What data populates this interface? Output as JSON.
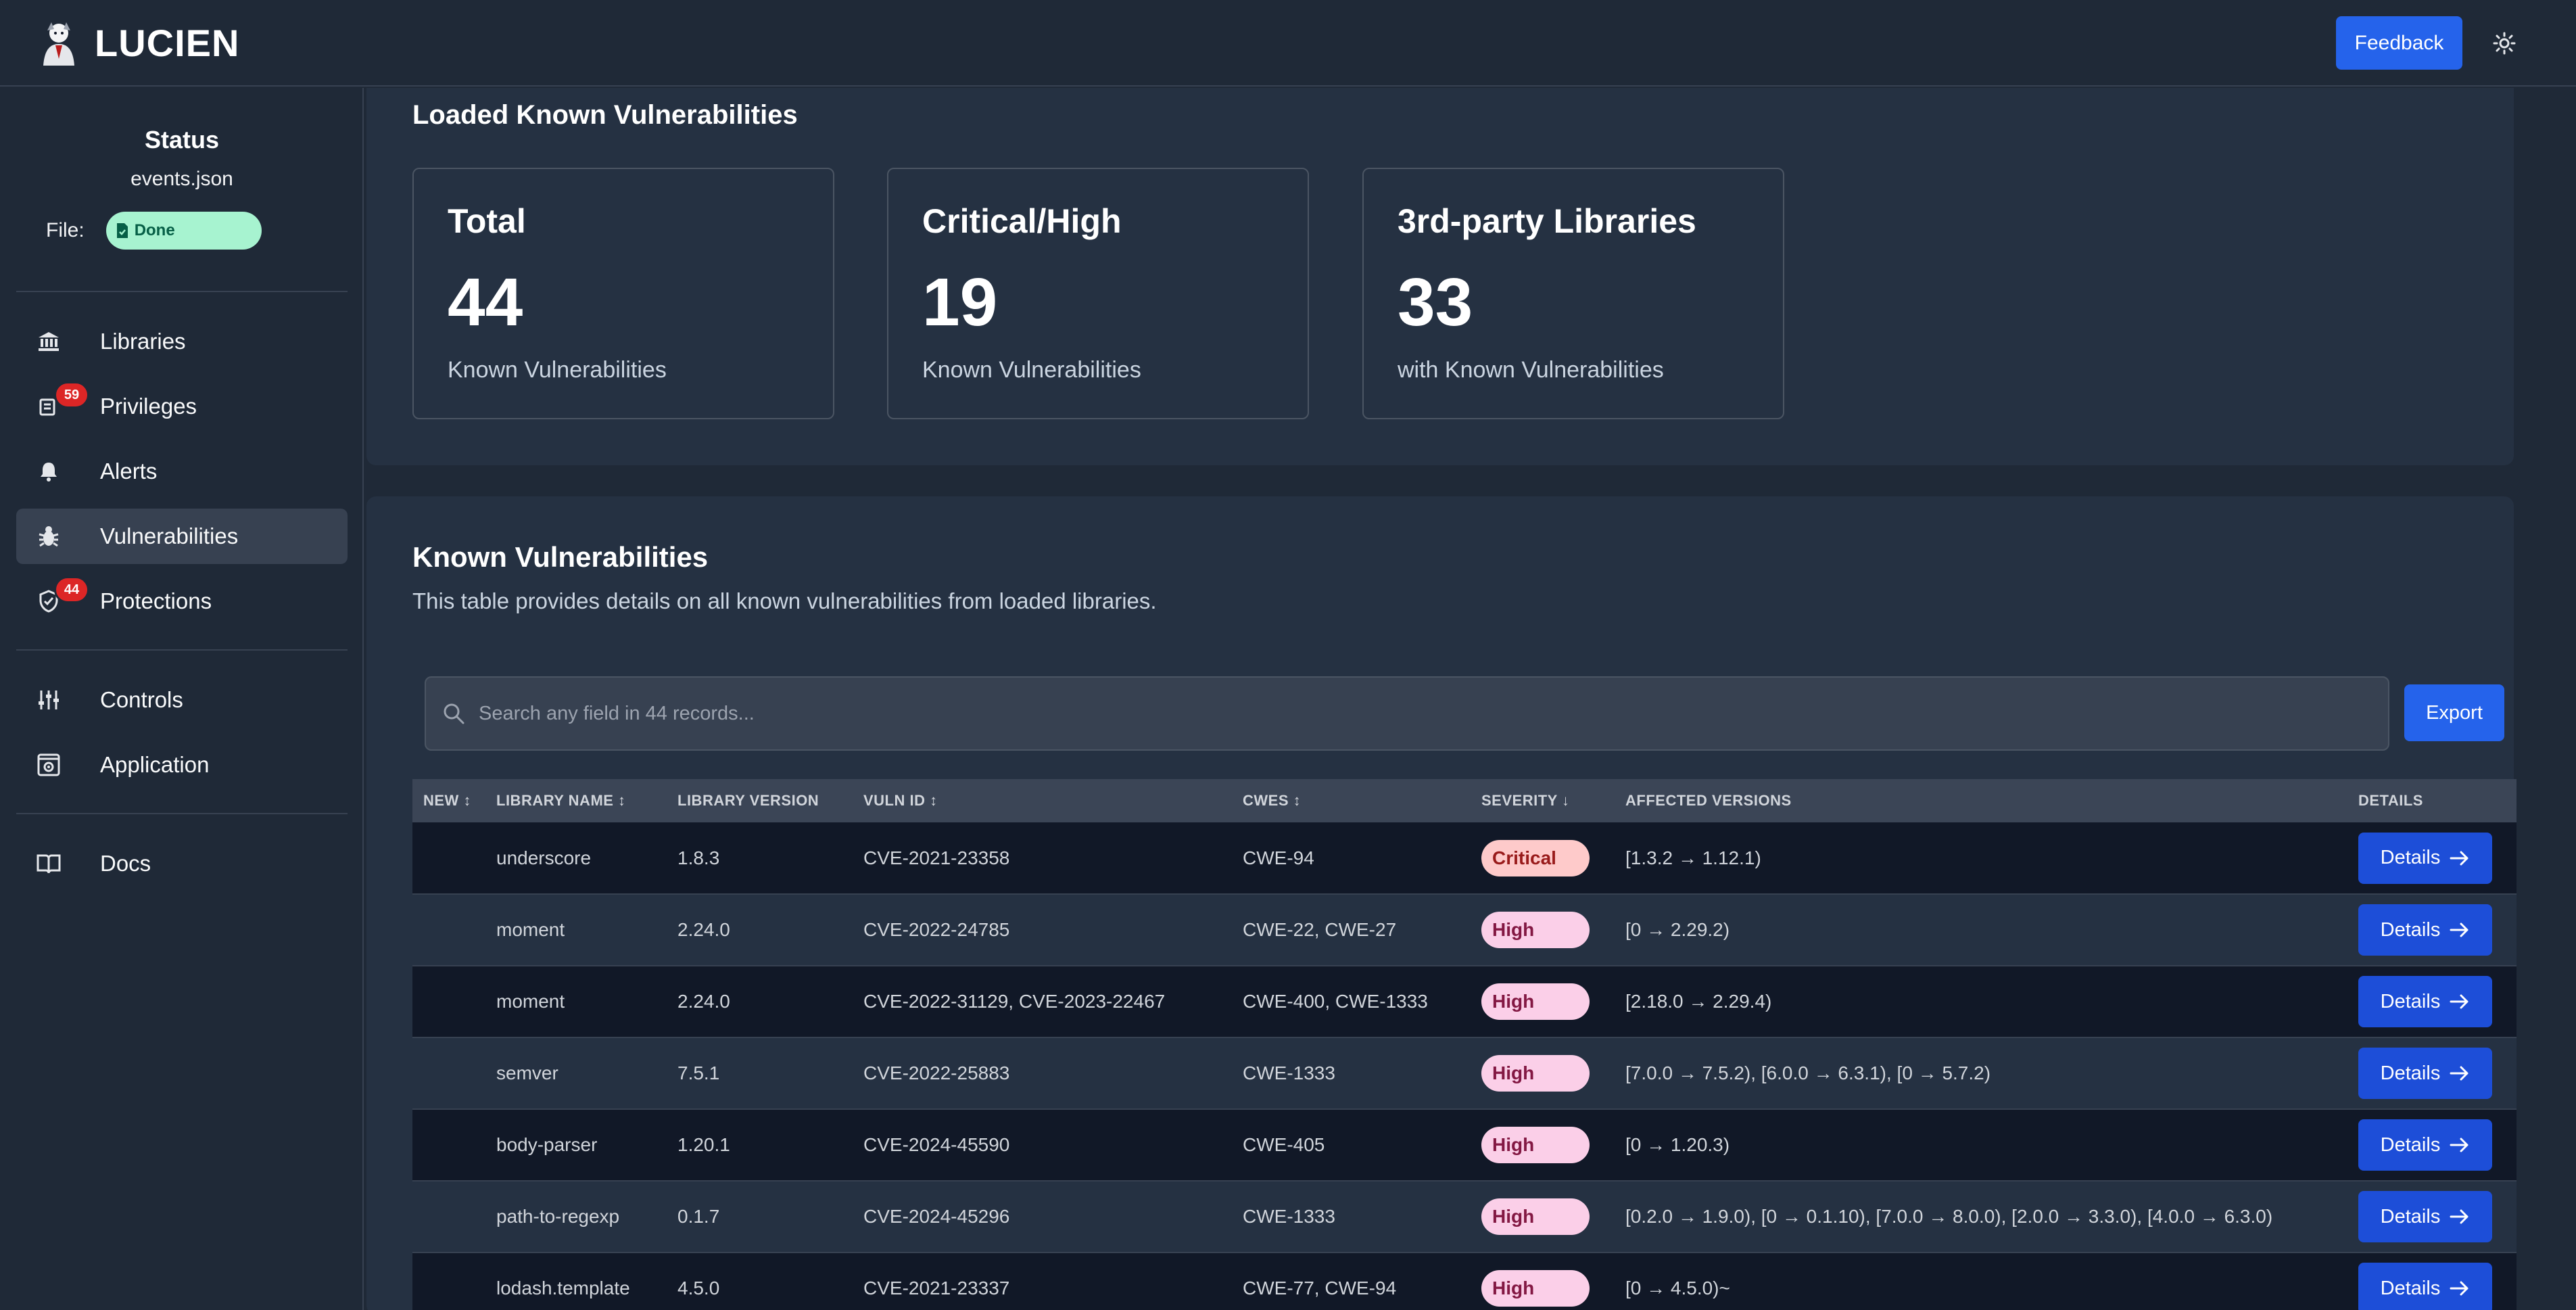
{
  "app": {
    "name": "LUCIEN",
    "feedback_label": "Feedback",
    "theme_icon": "sun-icon"
  },
  "sidebar": {
    "status_title": "Status",
    "file_name": "events.json",
    "file_label": "File:",
    "file_status": "Done",
    "nav": [
      {
        "label": "Libraries",
        "icon": "bank-icon"
      },
      {
        "label": "Privileges",
        "icon": "privileges-icon",
        "badge": "59"
      },
      {
        "label": "Alerts",
        "icon": "bell-icon"
      },
      {
        "label": "Vulnerabilities",
        "icon": "bug-icon",
        "active": true
      },
      {
        "label": "Protections",
        "icon": "shield-icon",
        "badge": "44"
      },
      {
        "label": "Controls",
        "icon": "sliders-icon"
      },
      {
        "label": "Application",
        "icon": "app-gear-icon"
      },
      {
        "label": "Docs",
        "icon": "book-icon"
      }
    ]
  },
  "summary": {
    "title": "Loaded Known Vulnerabilities",
    "cards": [
      {
        "title": "Total",
        "value": "44",
        "sub": "Known Vulnerabilities"
      },
      {
        "title": "Critical/High",
        "value": "19",
        "sub": "Known Vulnerabilities"
      },
      {
        "title": "3rd-party Libraries",
        "value": "33",
        "sub": "with Known Vulnerabilities"
      }
    ]
  },
  "table": {
    "title": "Known Vulnerabilities",
    "description": "This table provides details on all known vulnerabilities from loaded libraries.",
    "search_placeholder": "Search any field in 44 records...",
    "export_label": "Export",
    "details_label": "Details",
    "headers": {
      "new": "NEW ↕",
      "library_name": "LIBRARY NAME ↕",
      "library_version": "LIBRARY VERSION",
      "vuln_id": "VULN ID ↕",
      "cwes": "CWES ↕",
      "severity": "SEVERITY ↓",
      "affected_versions": "AFFECTED VERSIONS",
      "details": "DETAILS"
    },
    "rows": [
      {
        "new": "",
        "library": "underscore",
        "version": "1.8.3",
        "vuln_id": "CVE-2021-23358",
        "cwes": "CWE-94",
        "severity": "Critical",
        "affected": "[1.3.2 → 1.12.1)"
      },
      {
        "new": "",
        "library": "moment",
        "version": "2.24.0",
        "vuln_id": "CVE-2022-24785",
        "cwes": "CWE-22, CWE-27",
        "severity": "High",
        "affected": "[0 → 2.29.2)"
      },
      {
        "new": "",
        "library": "moment",
        "version": "2.24.0",
        "vuln_id": "CVE-2022-31129, CVE-2023-22467",
        "cwes": "CWE-400, CWE-1333",
        "severity": "High",
        "affected": "[2.18.0 → 2.29.4)"
      },
      {
        "new": "",
        "library": "semver",
        "version": "7.5.1",
        "vuln_id": "CVE-2022-25883",
        "cwes": "CWE-1333",
        "severity": "High",
        "affected": "[7.0.0 → 7.5.2), [6.0.0 → 6.3.1), [0 → 5.7.2)"
      },
      {
        "new": "",
        "library": "body-parser",
        "version": "1.20.1",
        "vuln_id": "CVE-2024-45590",
        "cwes": "CWE-405",
        "severity": "High",
        "affected": "[0 → 1.20.3)"
      },
      {
        "new": "",
        "library": "path-to-regexp",
        "version": "0.1.7",
        "vuln_id": "CVE-2024-45296",
        "cwes": "CWE-1333",
        "severity": "High",
        "affected": "[0.2.0 → 1.9.0), [0 → 0.1.10), [7.0.0 → 8.0.0), [2.0.0 → 3.3.0), [4.0.0 → 6.3.0)"
      },
      {
        "new": "",
        "library": "lodash.template",
        "version": "4.5.0",
        "vuln_id": "CVE-2021-23337",
        "cwes": "CWE-77, CWE-94",
        "severity": "High",
        "affected": "[0 → 4.5.0)~"
      }
    ]
  }
}
